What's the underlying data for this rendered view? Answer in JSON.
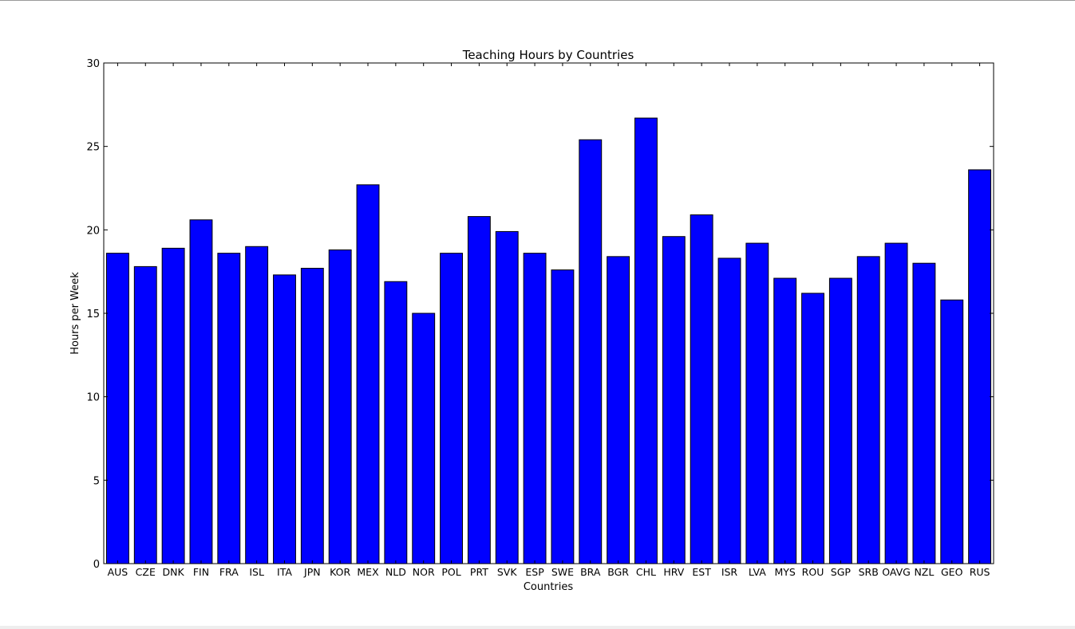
{
  "chart_data": {
    "type": "bar",
    "title": "Teaching Hours by Countries",
    "xlabel": "Countries",
    "ylabel": "Hours per Week",
    "ylim": [
      0,
      30
    ],
    "yticks": [
      0,
      5,
      10,
      15,
      20,
      25,
      30
    ],
    "categories": [
      "AUS",
      "CZE",
      "DNK",
      "FIN",
      "FRA",
      "ISL",
      "ITA",
      "JPN",
      "KOR",
      "MEX",
      "NLD",
      "NOR",
      "POL",
      "PRT",
      "SVK",
      "ESP",
      "SWE",
      "BRA",
      "BGR",
      "CHL",
      "HRV",
      "EST",
      "ISR",
      "LVA",
      "MYS",
      "ROU",
      "SGP",
      "SRB",
      "OAVG",
      "NZL",
      "GEO",
      "RUS"
    ],
    "values": [
      18.6,
      17.8,
      18.9,
      20.6,
      18.6,
      19.0,
      17.3,
      17.7,
      18.8,
      22.7,
      16.9,
      15.0,
      18.6,
      20.8,
      19.9,
      18.6,
      17.6,
      25.4,
      18.4,
      26.7,
      19.6,
      20.9,
      18.3,
      19.2,
      17.1,
      16.2,
      17.1,
      18.4,
      19.2,
      18.0,
      15.8,
      23.6
    ],
    "bar_color": "#0000ff",
    "edge_color": "#000000",
    "grid": false,
    "legend": "none"
  }
}
